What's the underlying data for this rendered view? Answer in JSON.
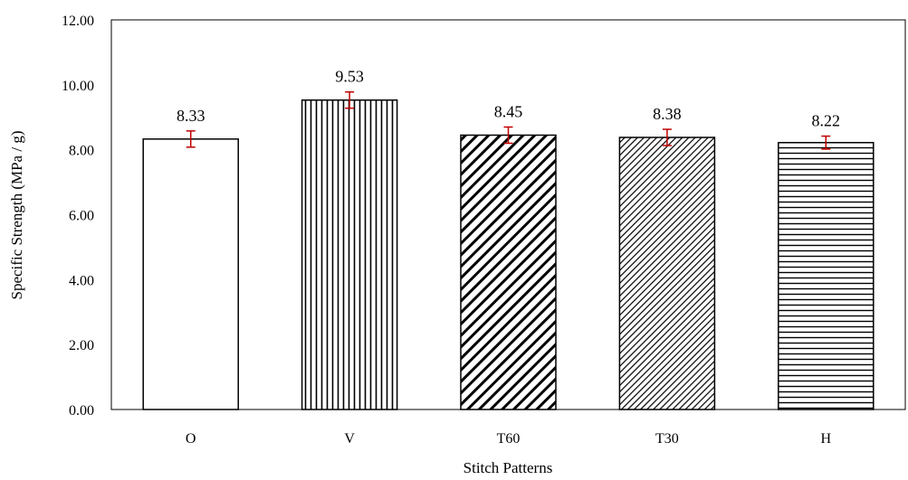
{
  "chart_data": {
    "type": "bar",
    "title": "",
    "xlabel": "Stitch Patterns",
    "ylabel": "Specific Strength (MPa / g)",
    "categories": [
      "O",
      "V",
      "T60",
      "T30",
      "H"
    ],
    "values": [
      8.33,
      9.53,
      8.45,
      8.38,
      8.22
    ],
    "value_labels": [
      "8.33",
      "9.53",
      "8.45",
      "8.38",
      "8.22"
    ],
    "error": [
      0.25,
      0.25,
      0.25,
      0.25,
      0.2
    ],
    "patterns": [
      "none",
      "vertical",
      "diagonal-wide",
      "diagonal-dense",
      "horizontal"
    ],
    "ylim": [
      0,
      12
    ],
    "yticks": [
      0,
      2,
      4,
      6,
      8,
      10,
      12
    ],
    "ytick_labels": [
      "0.00",
      "2.00",
      "4.00",
      "6.00",
      "8.00",
      "10.00",
      "12.00"
    ],
    "grid": false,
    "legend": "none",
    "colors": {
      "bar_fill": "#ffffff",
      "bar_stroke": "#000000",
      "error_bar": "#c00000"
    }
  }
}
